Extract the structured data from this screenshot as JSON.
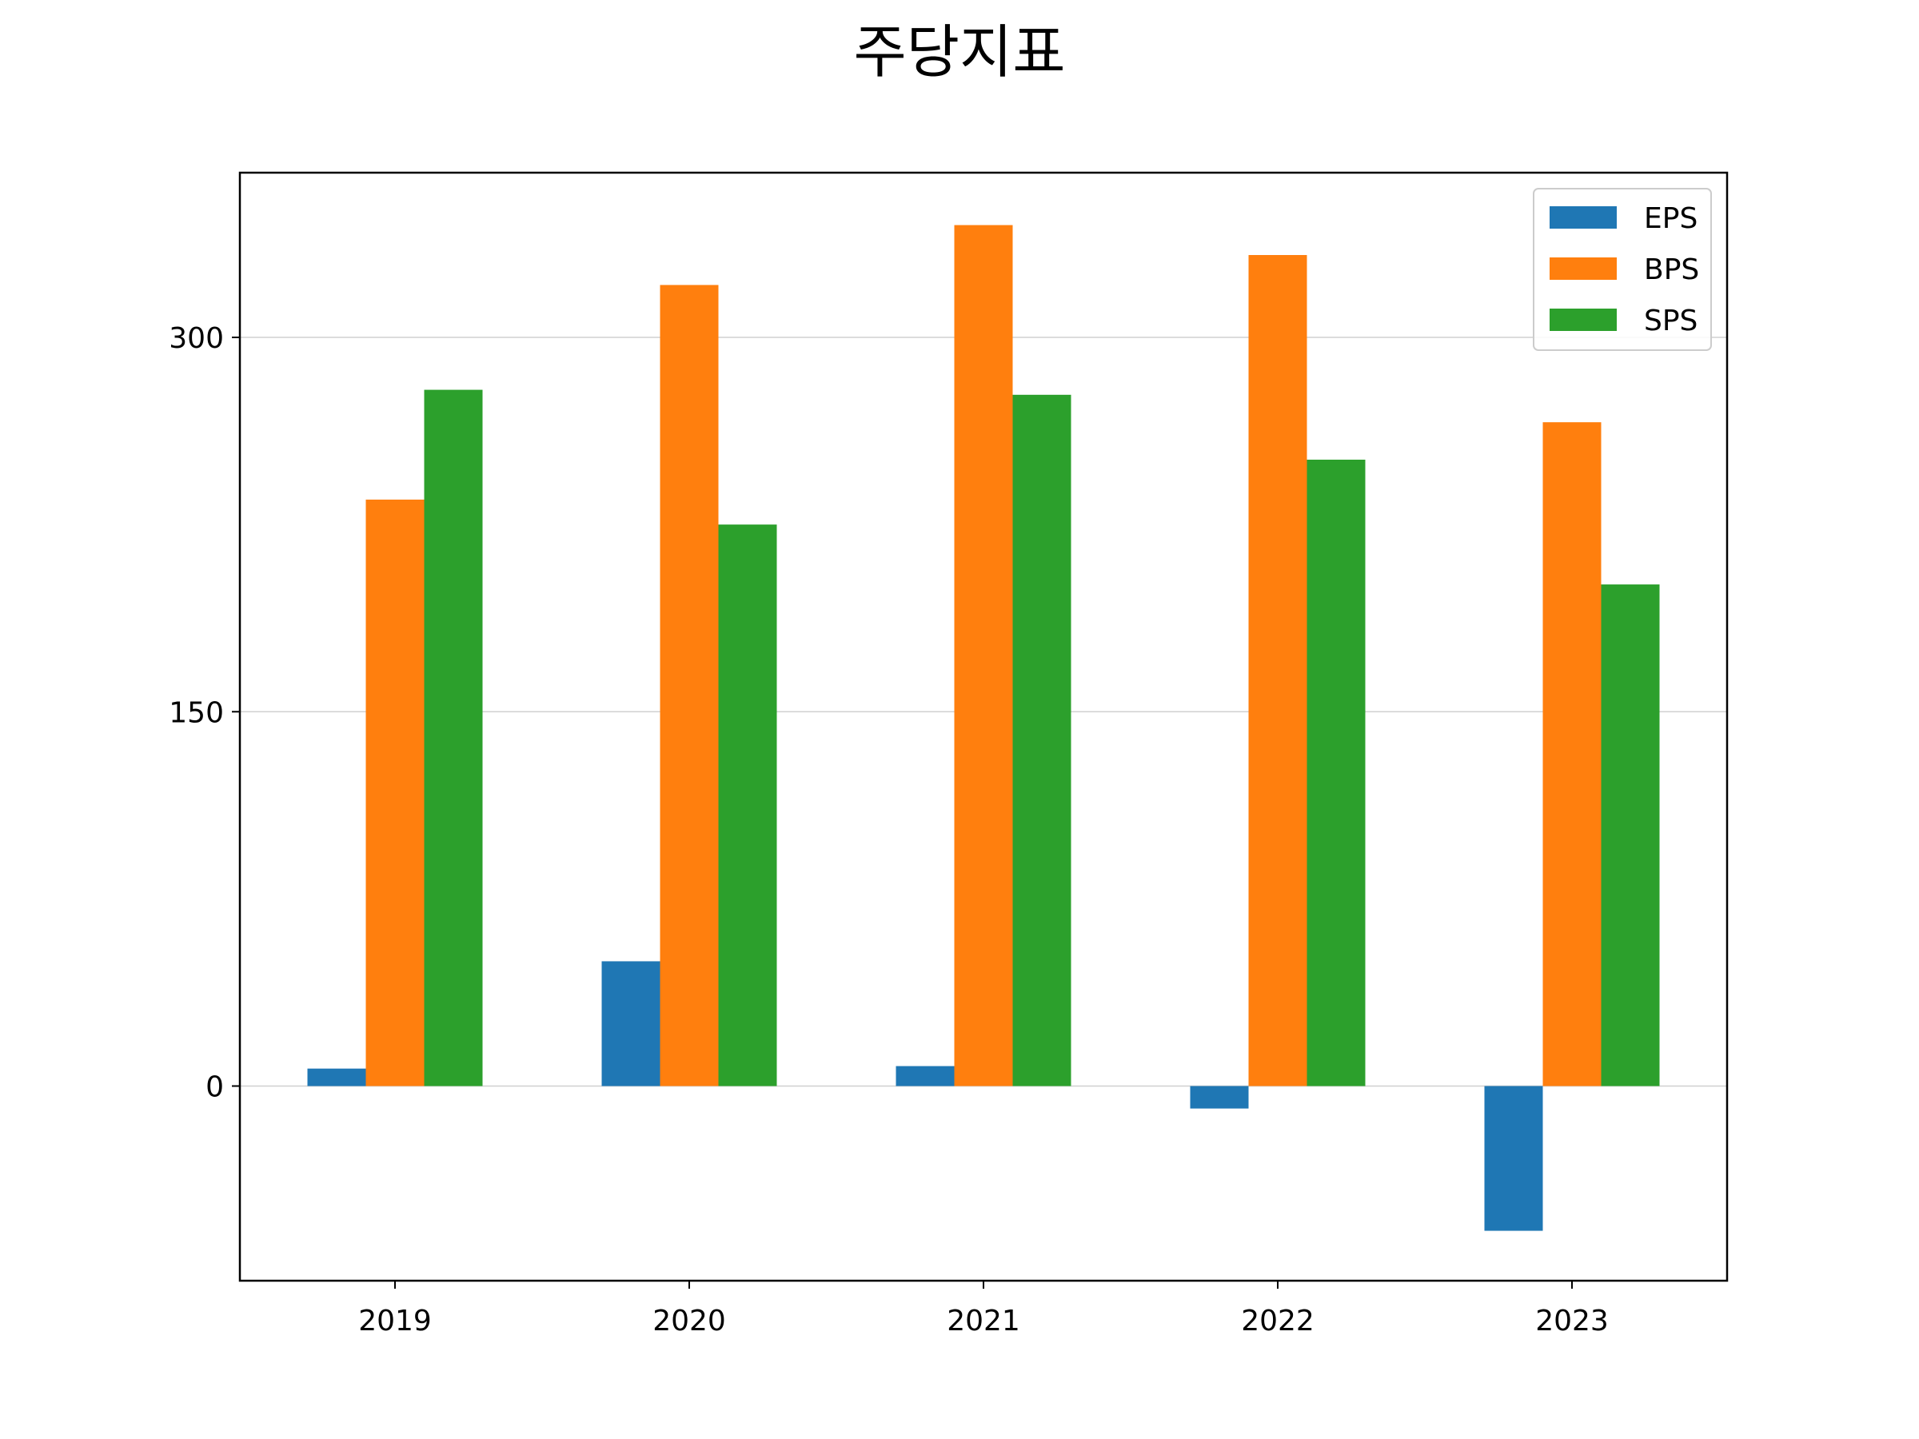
{
  "chart_data": {
    "type": "bar",
    "title": "주당지표",
    "xlabel": "",
    "ylabel": "",
    "categories": [
      "2019",
      "2020",
      "2021",
      "2022",
      "2023"
    ],
    "series": [
      {
        "name": "EPS",
        "color": "#1f77b4",
        "values": [
          7,
          50,
          8,
          -9,
          -58
        ]
      },
      {
        "name": "BPS",
        "color": "#ff7f0e",
        "values": [
          235,
          321,
          345,
          333,
          266
        ]
      },
      {
        "name": "SPS",
        "color": "#2ca02c",
        "values": [
          279,
          225,
          277,
          251,
          201
        ]
      }
    ],
    "yticks": [
      0,
      150,
      300
    ],
    "ylim": [
      -78,
      366
    ],
    "grid": "y",
    "legend": "top-right"
  }
}
